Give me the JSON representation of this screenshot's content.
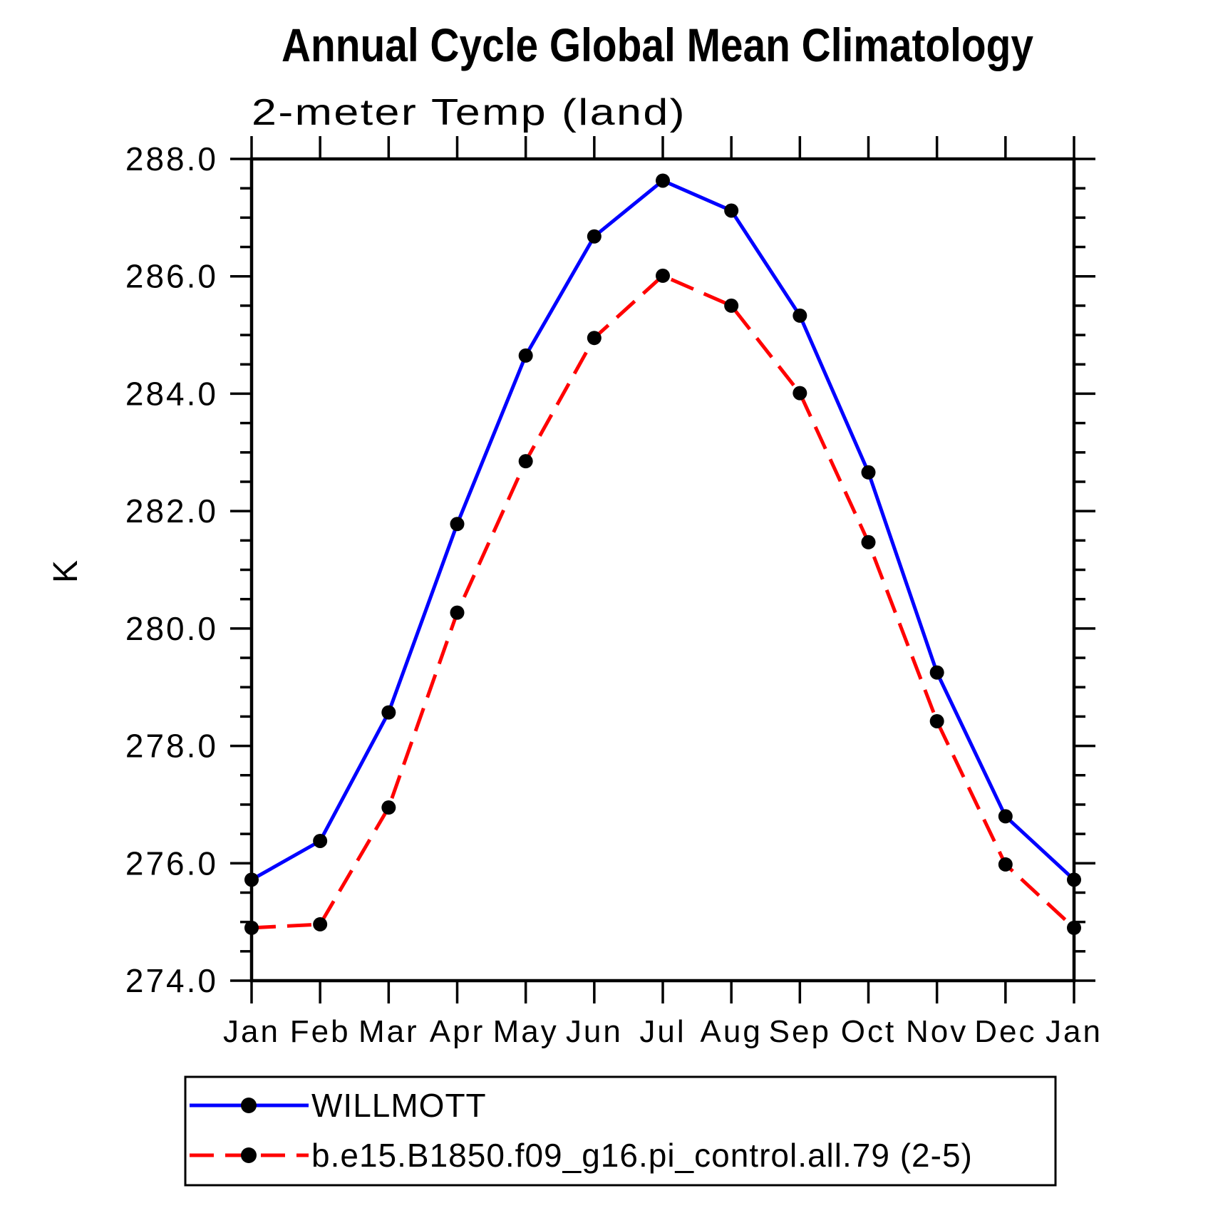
{
  "title": "Annual Cycle Global Mean Climatology",
  "subtitle": "2-meter Temp (land)",
  "chart_data": {
    "type": "line",
    "title": "Annual Cycle Global Mean Climatology",
    "subtitle": "2-meter Temp (land)",
    "ylabel": "K",
    "ylim": [
      274.0,
      288.0
    ],
    "y_tick_step": 2.0,
    "y_minor_step": 0.5,
    "y_tick_labels": [
      "274.0",
      "276.0",
      "278.0",
      "280.0",
      "282.0",
      "284.0",
      "286.0",
      "288.0"
    ],
    "x_tick_labels": [
      "Jan",
      "Feb",
      "Mar",
      "Apr",
      "May",
      "Jun",
      "Jul",
      "Aug",
      "Sep",
      "Oct",
      "Nov",
      "Dec",
      "Jan"
    ],
    "grid": false,
    "legend_position": "bottom-left",
    "marker": "filled-circle",
    "marker_color": "#000000",
    "series": [
      {
        "name": "WILLMOTT",
        "color": "#0000ff",
        "line_style": "solid",
        "values": [
          275.72,
          276.38,
          278.57,
          281.78,
          284.65,
          286.68,
          287.63,
          287.12,
          285.33,
          282.66,
          279.25,
          276.8,
          275.72
        ]
      },
      {
        "name": "b.e15.B1850.f09_g16.pi_control.all.79 (2-5)",
        "color": "#ff0000",
        "line_style": "dashed",
        "values": [
          274.9,
          274.96,
          276.95,
          280.27,
          282.85,
          284.95,
          286.01,
          285.5,
          284.01,
          281.47,
          278.42,
          275.98,
          274.9
        ]
      }
    ]
  }
}
